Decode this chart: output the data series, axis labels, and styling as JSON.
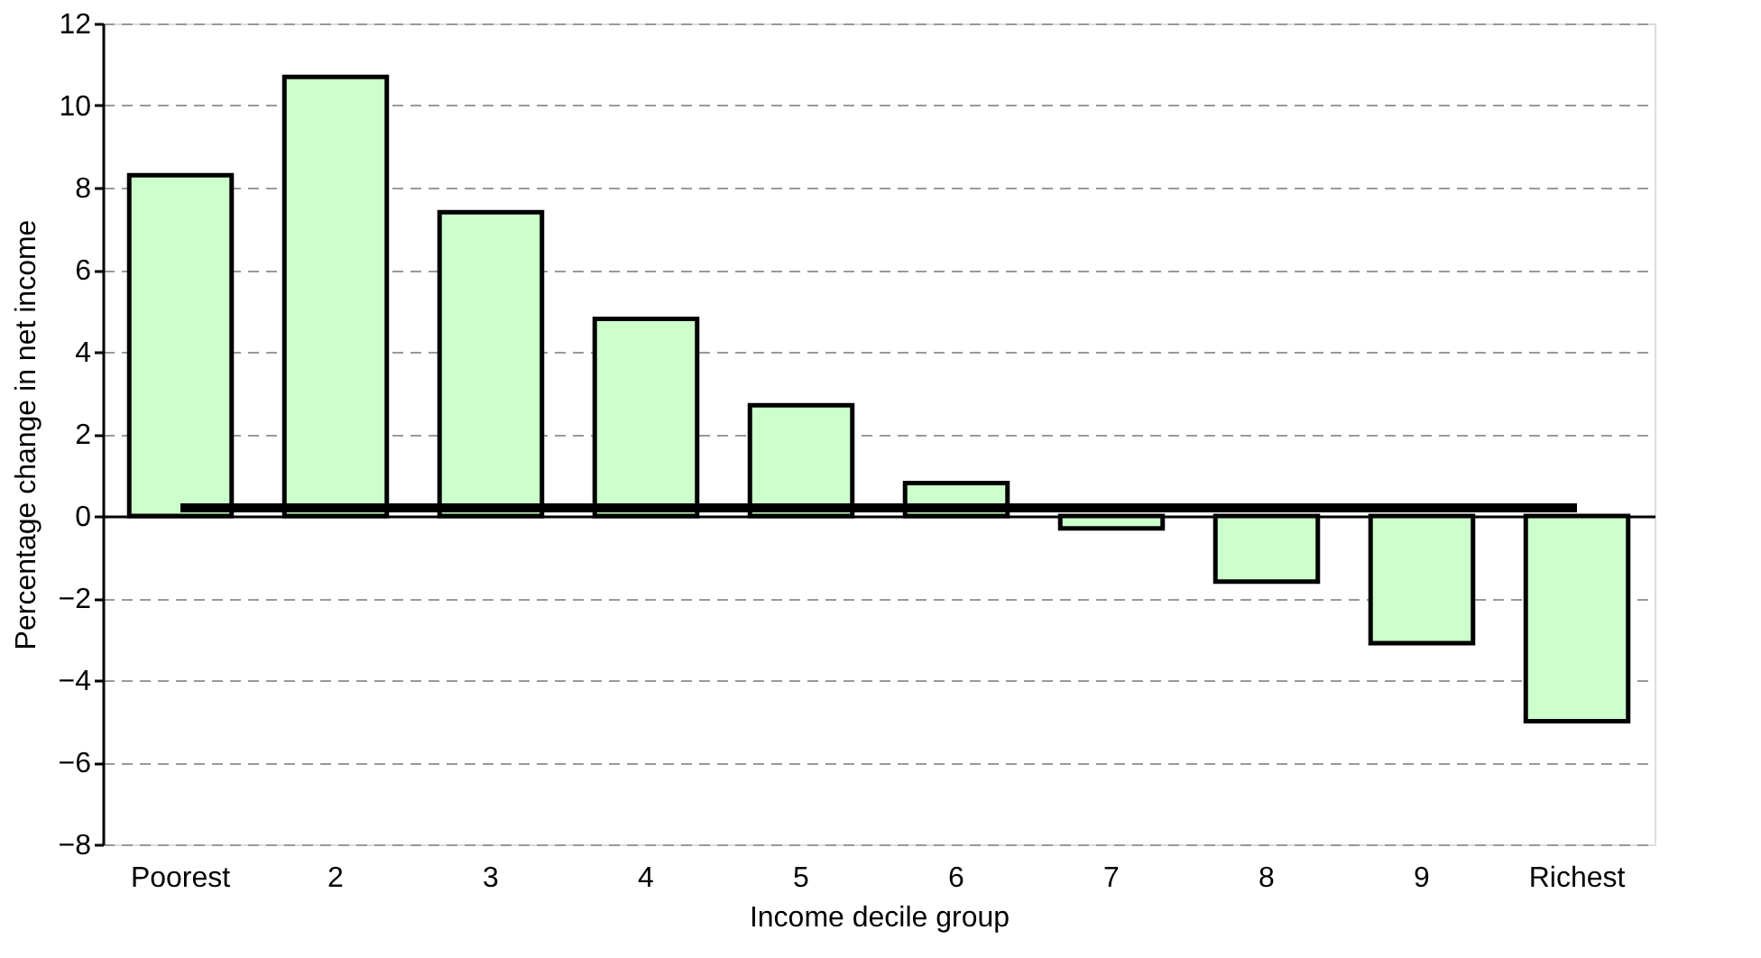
{
  "chart_data": {
    "type": "bar",
    "xlabel": "Income decile group",
    "ylabel": "Percentage change in net income",
    "categories": [
      "Poorest",
      "2",
      "3",
      "4",
      "5",
      "6",
      "7",
      "8",
      "9",
      "Richest"
    ],
    "series": [
      {
        "color": "#ccffcc",
        "values": [
          8.3,
          10.7,
          7.4,
          4.8,
          2.7,
          0.8,
          -0.3,
          -1.6,
          -3.1,
          -5.0
        ]
      },
      {
        "type": "line",
        "color": "#000000",
        "values": [
          0.2,
          0.2,
          0.2,
          0.2,
          0.2,
          0.2,
          0.2,
          0.2,
          0.2,
          0.2
        ],
        "marker": "none",
        "line_style": "solid"
      }
    ],
    "ylim": [
      -8,
      12
    ],
    "yticks": [
      -8,
      -6,
      -4,
      -2,
      0,
      2,
      4,
      6,
      8,
      10,
      12
    ],
    "grid": "y"
  }
}
